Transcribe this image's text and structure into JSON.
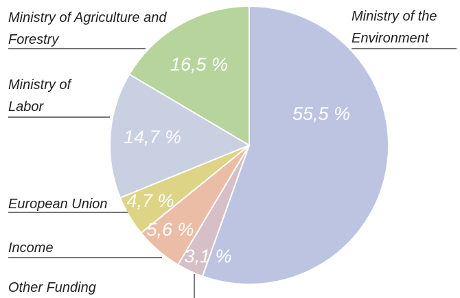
{
  "chart_data": {
    "type": "pie",
    "categories": [
      "Ministry of the Environment",
      "Other Funding",
      "Income",
      "European Union",
      "Ministry of Labor",
      "Ministry of Agriculture and Forestry"
    ],
    "values": [
      55.5,
      3.1,
      5.6,
      4.7,
      14.7,
      16.5
    ],
    "value_labels": [
      "55,5 %",
      "3,1 %",
      "5,6 %",
      "4,7 %",
      "14,7 %",
      "16,5 %"
    ],
    "colors": [
      "#bcc4e2",
      "#d6bfc6",
      "#ebbca6",
      "#ddd486",
      "#c9d0e2",
      "#b7d49c"
    ]
  }
}
